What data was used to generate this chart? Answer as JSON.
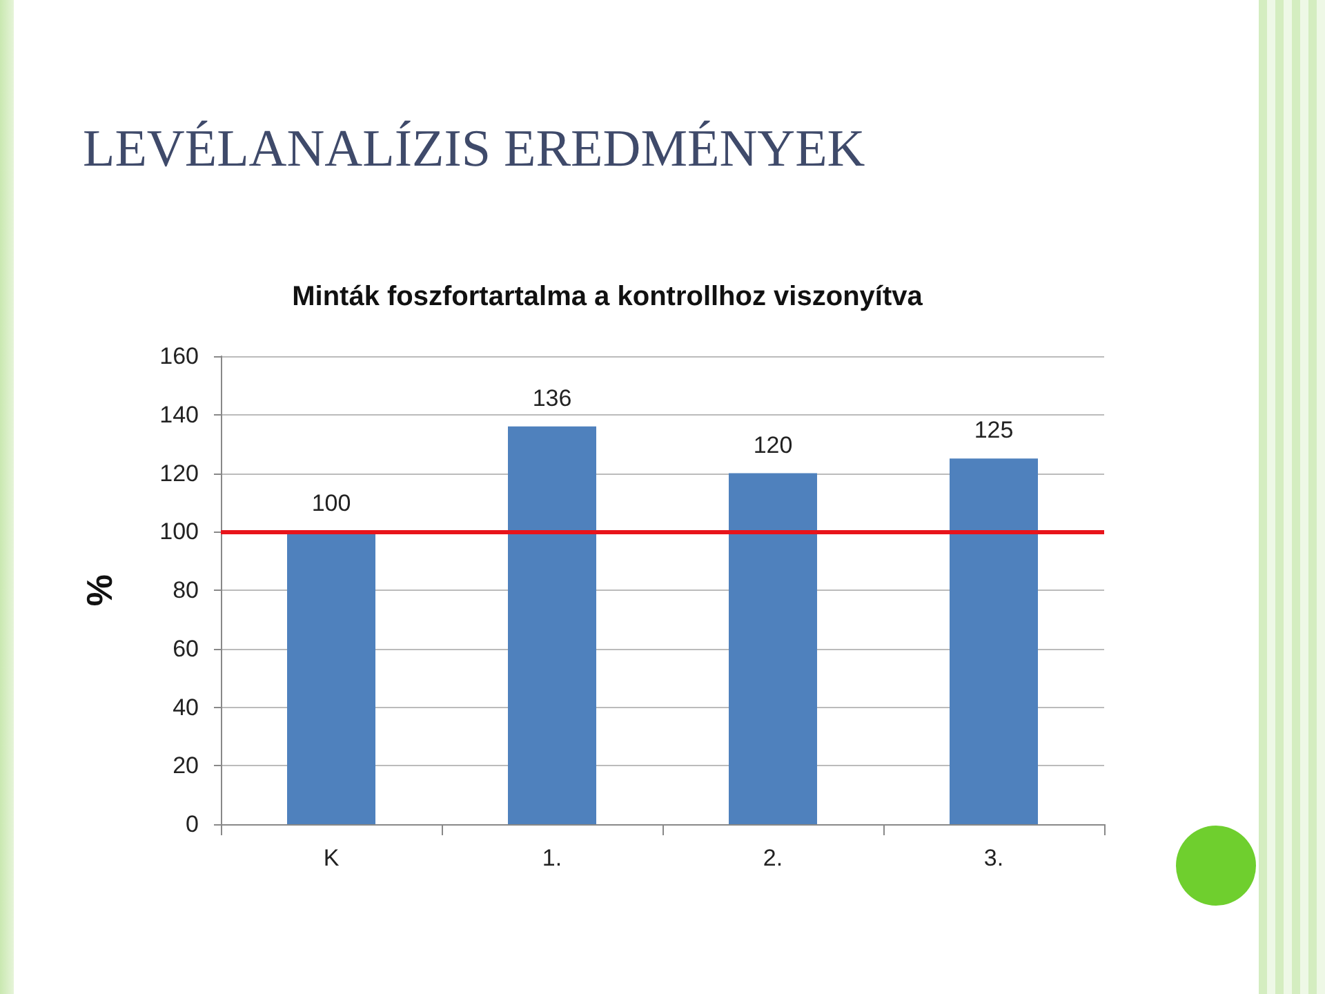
{
  "chart_data": {
    "type": "bar",
    "title": "LEVÉLANALÍZIS EREDMÉNYEK",
    "subtitle": "Minták foszfortartalma a kontrollhoz viszonyítva",
    "ylabel": "%",
    "categories": [
      "K",
      "1.",
      "2.",
      "3."
    ],
    "values": [
      100,
      136,
      120,
      125
    ],
    "color": "#4f81bd",
    "ylim": [
      0,
      160
    ],
    "yticks": [
      0,
      20,
      40,
      60,
      80,
      100,
      120,
      140,
      160
    ],
    "grid": "y",
    "data_labels": true,
    "ref_lines": [
      {
        "axis": "y",
        "value": 100,
        "label": null,
        "color": "#e8141b"
      }
    ]
  }
}
